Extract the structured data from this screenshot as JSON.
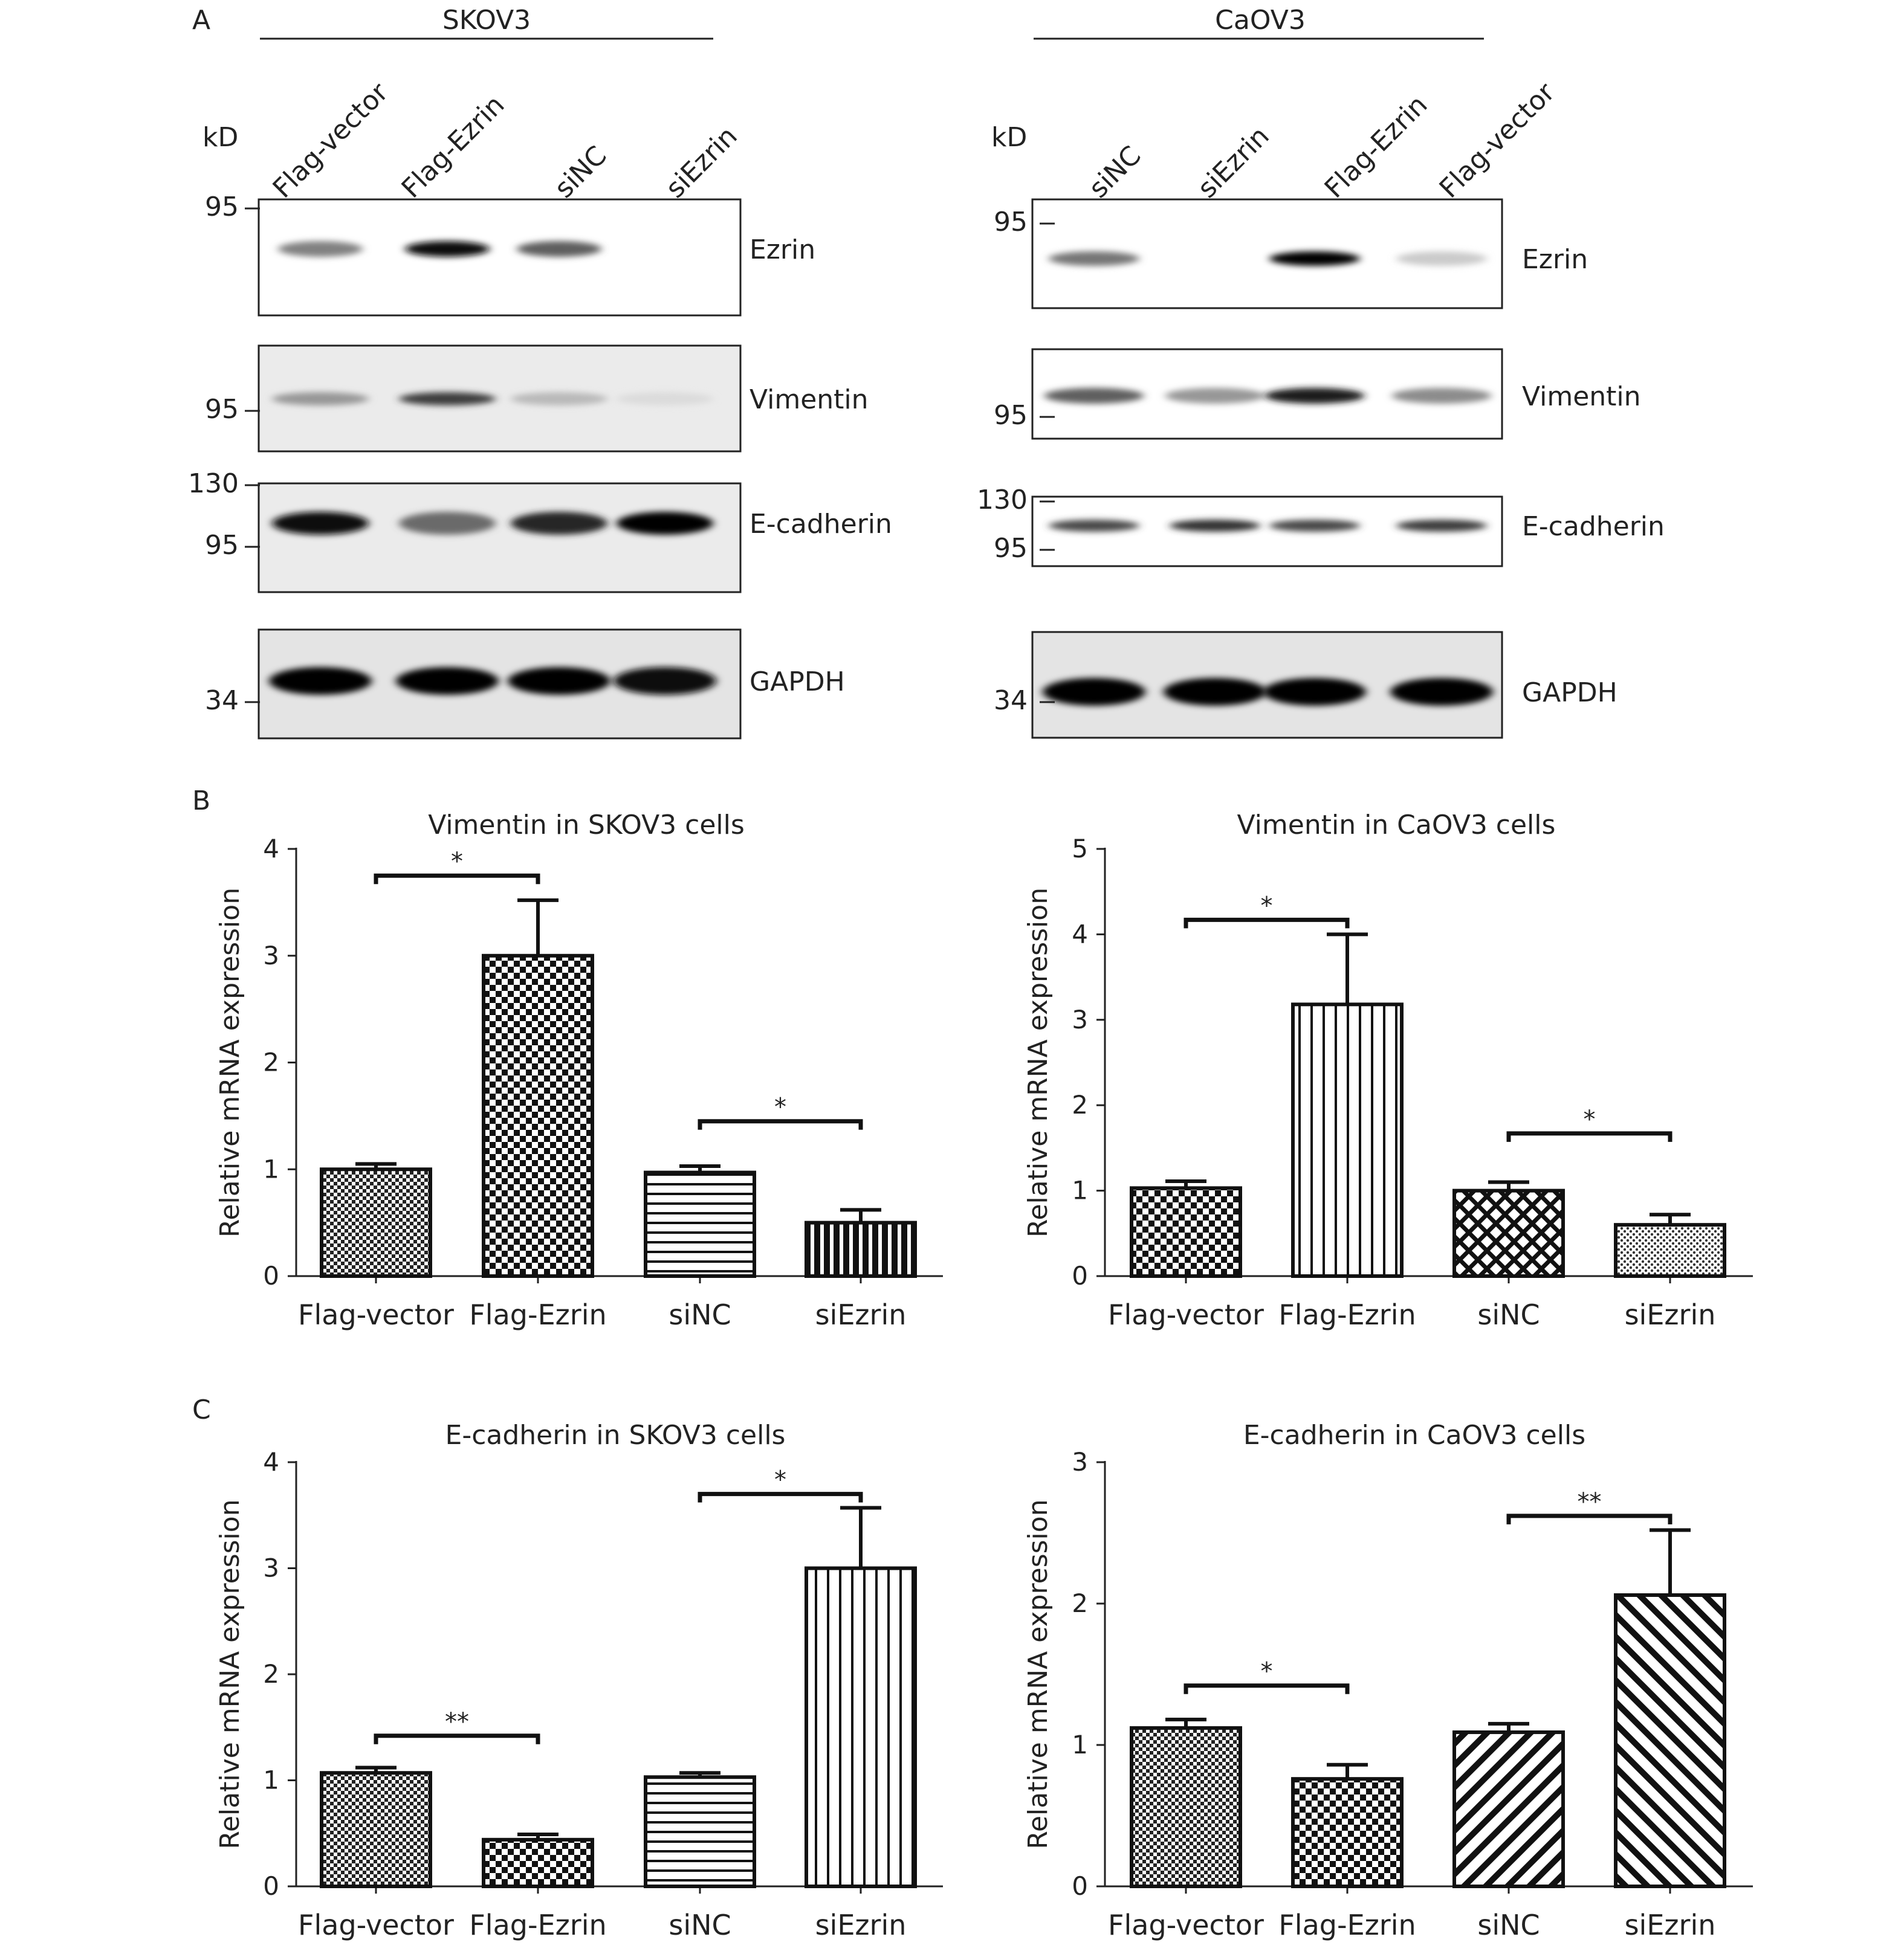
{
  "panels": {
    "a": "A",
    "b": "B",
    "c": "C"
  },
  "blots": {
    "kd_label": "kD",
    "skov3": {
      "cell_line": "SKOV3",
      "lanes": [
        "Flag-vector",
        "Flag-Ezrin",
        "siNC",
        "siEzrin"
      ],
      "rows": [
        {
          "protein": "Ezrin",
          "markers": [
            "95"
          ],
          "intensities": [
            0.45,
            0.95,
            0.6,
            0.0
          ]
        },
        {
          "protein": "Vimentin",
          "markers": [
            "95"
          ],
          "intensities": [
            0.35,
            0.75,
            0.2,
            0.05
          ]
        },
        {
          "protein": "E-cadherin",
          "markers": [
            "130",
            "95"
          ],
          "intensities": [
            0.95,
            0.55,
            0.85,
            1.0
          ]
        },
        {
          "protein": "GAPDH",
          "markers": [
            "34"
          ],
          "intensities": [
            1.0,
            1.0,
            1.0,
            0.95
          ]
        }
      ]
    },
    "caov3": {
      "cell_line": "CaOV3",
      "lanes": [
        "siNC",
        "siEzrin",
        "Flag-Ezrin",
        "Flag-vector"
      ],
      "rows": [
        {
          "protein": "Ezrin",
          "markers": [
            "95"
          ],
          "intensities": [
            0.5,
            0.0,
            1.0,
            0.12
          ]
        },
        {
          "protein": "Vimentin",
          "markers": [
            "95"
          ],
          "intensities": [
            0.6,
            0.35,
            0.9,
            0.4
          ]
        },
        {
          "protein": "E-cadherin",
          "markers": [
            "130",
            "95"
          ],
          "intensities": [
            0.7,
            0.8,
            0.7,
            0.75
          ]
        },
        {
          "protein": "GAPDH",
          "markers": [
            "34"
          ],
          "intensities": [
            1.0,
            1.0,
            1.0,
            1.0
          ]
        }
      ]
    }
  },
  "chart_data": [
    {
      "type": "bar",
      "title": "Vimentin in SKOV3 cells",
      "ylabel": "Relative mRNA expression",
      "categories": [
        "Flag-vector",
        "Flag-Ezrin",
        "siNC",
        "siEzrin"
      ],
      "values": [
        1.0,
        3.0,
        0.97,
        0.5
      ],
      "errors": [
        0.05,
        0.52,
        0.06,
        0.12
      ],
      "patterns": [
        "fine-check",
        "check",
        "hlines",
        "vlines-dense"
      ],
      "ylim": [
        0,
        4
      ],
      "yticks": [
        "0",
        "1",
        "2",
        "3",
        "4"
      ],
      "significance": [
        {
          "from": 0,
          "to": 1,
          "label": "*",
          "y": 3.75
        },
        {
          "from": 2,
          "to": 3,
          "label": "*",
          "y": 1.45
        }
      ]
    },
    {
      "type": "bar",
      "title": "Vimentin in CaOV3 cells",
      "ylabel": "Relative mRNA expression",
      "categories": [
        "Flag-vector",
        "Flag-Ezrin",
        "siNC",
        "siEzrin"
      ],
      "values": [
        1.03,
        3.18,
        1.0,
        0.6
      ],
      "errors": [
        0.08,
        0.82,
        0.1,
        0.12
      ],
      "patterns": [
        "check",
        "vlines",
        "crosshatch",
        "dots"
      ],
      "ylim": [
        0,
        5
      ],
      "yticks": [
        "0",
        "1",
        "2",
        "3",
        "4",
        "5"
      ],
      "significance": [
        {
          "from": 0,
          "to": 1,
          "label": "*",
          "y": 4.17
        },
        {
          "from": 2,
          "to": 3,
          "label": "*",
          "y": 1.67
        }
      ]
    },
    {
      "type": "bar",
      "title": "E-cadherin in SKOV3 cells",
      "ylabel": "Relative mRNA expression",
      "categories": [
        "Flag-vector",
        "Flag-Ezrin",
        "siNC",
        "siEzrin"
      ],
      "values": [
        1.07,
        0.44,
        1.03,
        3.0
      ],
      "errors": [
        0.05,
        0.05,
        0.04,
        0.57
      ],
      "patterns": [
        "fine-check",
        "check",
        "hlines",
        "vlines"
      ],
      "ylim": [
        0,
        4
      ],
      "yticks": [
        "0",
        "1",
        "2",
        "3",
        "4"
      ],
      "significance": [
        {
          "from": 0,
          "to": 1,
          "label": "**",
          "y": 1.42
        },
        {
          "from": 2,
          "to": 3,
          "label": "*",
          "y": 3.7
        }
      ]
    },
    {
      "type": "bar",
      "title": "E-cadherin in  CaOV3 cells",
      "ylabel": "Relative mRNA expression",
      "categories": [
        "Flag-vector",
        "Flag-Ezrin",
        "siNC",
        "siEzrin"
      ],
      "values": [
        1.12,
        0.76,
        1.09,
        2.06
      ],
      "errors": [
        0.06,
        0.1,
        0.06,
        0.46
      ],
      "patterns": [
        "fine-check",
        "check",
        "diag-up",
        "diag-down"
      ],
      "ylim": [
        0,
        3
      ],
      "yticks": [
        "0",
        "1",
        "2",
        "3"
      ],
      "significance": [
        {
          "from": 0,
          "to": 1,
          "label": "*",
          "y": 1.42
        },
        {
          "from": 2,
          "to": 3,
          "label": "**",
          "y": 2.62
        }
      ]
    }
  ]
}
